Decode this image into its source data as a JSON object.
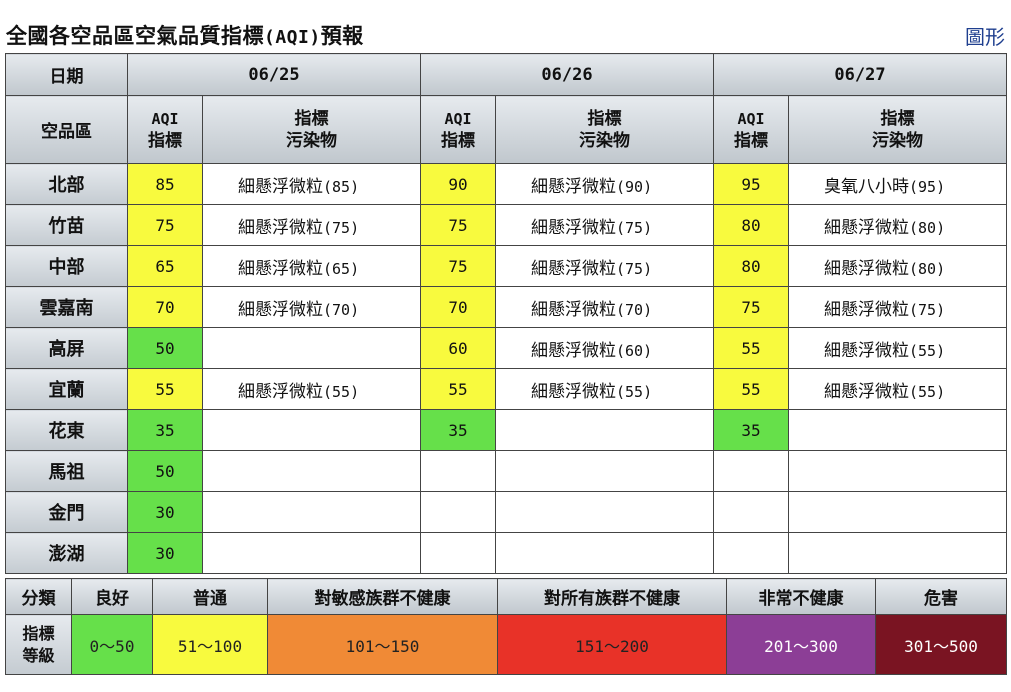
{
  "header": {
    "title_prefix": "全國各空品區空氣品質指標",
    "title_code": "(AQI)",
    "title_suffix": "預報",
    "graph_link": "圖形"
  },
  "table": {
    "date_header": "日期",
    "region_header": "空品區",
    "aqi_header_line1": "AQI",
    "aqi_header_line2": "指標",
    "pollutant_header_line1": "指標",
    "pollutant_header_line2": "污染物",
    "dates": [
      "06/25",
      "06/26",
      "06/27"
    ],
    "rows": [
      {
        "region": "北部",
        "days": [
          {
            "aqi": "85",
            "level": "moderate",
            "pollutant": "細懸浮微粒",
            "pval": "(85)"
          },
          {
            "aqi": "90",
            "level": "moderate",
            "pollutant": "細懸浮微粒",
            "pval": "(90)"
          },
          {
            "aqi": "95",
            "level": "moderate",
            "pollutant": "臭氧八小時",
            "pval": "(95)"
          }
        ]
      },
      {
        "region": "竹苗",
        "days": [
          {
            "aqi": "75",
            "level": "moderate",
            "pollutant": "細懸浮微粒",
            "pval": "(75)"
          },
          {
            "aqi": "75",
            "level": "moderate",
            "pollutant": "細懸浮微粒",
            "pval": "(75)"
          },
          {
            "aqi": "80",
            "level": "moderate",
            "pollutant": "細懸浮微粒",
            "pval": "(80)"
          }
        ]
      },
      {
        "region": "中部",
        "days": [
          {
            "aqi": "65",
            "level": "moderate",
            "pollutant": "細懸浮微粒",
            "pval": "(65)"
          },
          {
            "aqi": "75",
            "level": "moderate",
            "pollutant": "細懸浮微粒",
            "pval": "(75)"
          },
          {
            "aqi": "80",
            "level": "moderate",
            "pollutant": "細懸浮微粒",
            "pval": "(80)"
          }
        ]
      },
      {
        "region": "雲嘉南",
        "days": [
          {
            "aqi": "70",
            "level": "moderate",
            "pollutant": "細懸浮微粒",
            "pval": "(70)"
          },
          {
            "aqi": "70",
            "level": "moderate",
            "pollutant": "細懸浮微粒",
            "pval": "(70)"
          },
          {
            "aqi": "75",
            "level": "moderate",
            "pollutant": "細懸浮微粒",
            "pval": "(75)"
          }
        ]
      },
      {
        "region": "高屏",
        "days": [
          {
            "aqi": "50",
            "level": "good",
            "pollutant": "",
            "pval": ""
          },
          {
            "aqi": "60",
            "level": "moderate",
            "pollutant": "細懸浮微粒",
            "pval": "(60)"
          },
          {
            "aqi": "55",
            "level": "moderate",
            "pollutant": "細懸浮微粒",
            "pval": "(55)"
          }
        ]
      },
      {
        "region": "宜蘭",
        "days": [
          {
            "aqi": "55",
            "level": "moderate",
            "pollutant": "細懸浮微粒",
            "pval": "(55)"
          },
          {
            "aqi": "55",
            "level": "moderate",
            "pollutant": "細懸浮微粒",
            "pval": "(55)"
          },
          {
            "aqi": "55",
            "level": "moderate",
            "pollutant": "細懸浮微粒",
            "pval": "(55)"
          }
        ]
      },
      {
        "region": "花東",
        "days": [
          {
            "aqi": "35",
            "level": "good",
            "pollutant": "",
            "pval": ""
          },
          {
            "aqi": "35",
            "level": "good",
            "pollutant": "",
            "pval": ""
          },
          {
            "aqi": "35",
            "level": "good",
            "pollutant": "",
            "pval": ""
          }
        ]
      },
      {
        "region": "馬祖",
        "days": [
          {
            "aqi": "50",
            "level": "good",
            "pollutant": "",
            "pval": ""
          },
          {
            "aqi": "",
            "level": "empty",
            "pollutant": "",
            "pval": ""
          },
          {
            "aqi": "",
            "level": "empty",
            "pollutant": "",
            "pval": ""
          }
        ]
      },
      {
        "region": "金門",
        "days": [
          {
            "aqi": "30",
            "level": "good",
            "pollutant": "",
            "pval": ""
          },
          {
            "aqi": "",
            "level": "empty",
            "pollutant": "",
            "pval": ""
          },
          {
            "aqi": "",
            "level": "empty",
            "pollutant": "",
            "pval": ""
          }
        ]
      },
      {
        "region": "澎湖",
        "days": [
          {
            "aqi": "30",
            "level": "good",
            "pollutant": "",
            "pval": ""
          },
          {
            "aqi": "",
            "level": "empty",
            "pollutant": "",
            "pval": ""
          },
          {
            "aqi": "",
            "level": "empty",
            "pollutant": "",
            "pval": ""
          }
        ]
      }
    ],
    "level_colors": {
      "good": "#66e04a",
      "moderate": "#f8fa3e"
    }
  },
  "legend": {
    "category_header": "分類",
    "index_header_line1": "指標",
    "index_header_line2": "等級",
    "levels": [
      {
        "label": "良好",
        "range": "0〜50",
        "color": "#66e04a"
      },
      {
        "label": "普通",
        "range": "51〜100",
        "color": "#f8fa3e"
      },
      {
        "label": "對敏感族群不健康",
        "range": "101〜150",
        "color": "#f08a36"
      },
      {
        "label": "對所有族群不健康",
        "range": "151〜200",
        "color": "#e83228"
      },
      {
        "label": "非常不健康",
        "range": "201〜300",
        "color": "#8c3e96"
      },
      {
        "label": "危害",
        "range": "301〜500",
        "color": "#7a1422"
      }
    ]
  }
}
